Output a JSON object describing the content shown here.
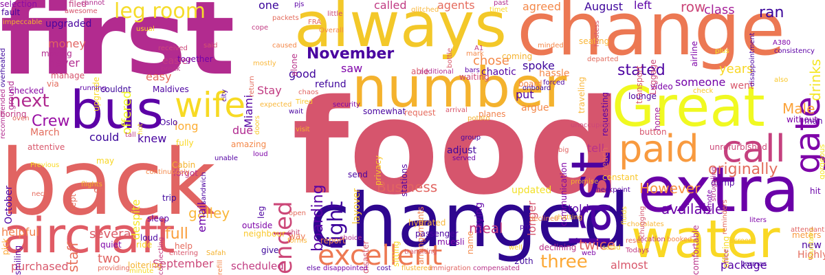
{
  "words": [
    {
      "text": "food",
      "color": "#d6556d"
    },
    {
      "text": "first",
      "color": "#b22b8f"
    },
    {
      "text": "back",
      "color": "#e16462"
    },
    {
      "text": "changed",
      "color": "#2e068f"
    },
    {
      "text": "change",
      "color": "#ec7853"
    },
    {
      "text": "always",
      "color": "#f3c829"
    },
    {
      "text": "number",
      "color": "#f4b22d"
    },
    {
      "text": "Great",
      "color": "#f0f921"
    },
    {
      "text": "extra",
      "color": "#6a00a8"
    },
    {
      "text": "water",
      "color": "#f9d824"
    },
    {
      "text": "aircraft",
      "color": "#e05b65"
    },
    {
      "text": "bus",
      "color": "#5c01a6"
    },
    {
      "text": "last",
      "color": "#4c02a1"
    },
    {
      "text": "call",
      "color": "#c5407e"
    },
    {
      "text": "paid",
      "color": "#f89a3f"
    },
    {
      "text": "wife",
      "color": "#f7da24"
    },
    {
      "text": "excellent",
      "color": "#ed7953"
    },
    {
      "text": "gate",
      "color": "#7e03a8"
    },
    {
      "text": "ended",
      "color": "#cc4778"
    },
    {
      "text": "right",
      "color": "#3e049c"
    },
    {
      "text": "three",
      "color": "#fca835"
    },
    {
      "text": "leg room",
      "color": "#f5dc2b"
    },
    {
      "text": "originally",
      "color": "#e36c5d"
    },
    {
      "text": "next",
      "color": "#b02a8f"
    },
    {
      "text": "full",
      "color": "#fa9e3b"
    },
    {
      "text": "November",
      "color": "#4903a0"
    },
    {
      "text": "staff",
      "color": "#e76f5a"
    },
    {
      "text": "Crew",
      "color": "#990fa4"
    },
    {
      "text": "boarding",
      "color": "#5601a4"
    },
    {
      "text": "stated",
      "color": "#4c02a1"
    },
    {
      "text": "available",
      "color": "#6a00a8"
    },
    {
      "text": "However",
      "color": "#f79342"
    },
    {
      "text": "Business",
      "color": "#e26561"
    },
    {
      "text": "ran",
      "color": "#3b049a"
    },
    {
      "text": "row",
      "color": "#cb4679"
    },
    {
      "text": "class",
      "color": "#a62098"
    },
    {
      "text": "drinks",
      "color": "#f5e626"
    },
    {
      "text": "Male",
      "color": "#fba238"
    },
    {
      "text": "package",
      "color": "#5402a3"
    },
    {
      "text": "twice",
      "color": "#e16462"
    },
    {
      "text": "galley",
      "color": "#f9b73a"
    },
    {
      "text": "several",
      "color": "#db5c68"
    },
    {
      "text": "purchased",
      "color": "#d8576b"
    },
    {
      "text": "helpful",
      "color": "#f1824c"
    },
    {
      "text": "two",
      "color": "#e16462"
    },
    {
      "text": "September",
      "color": "#cc4778"
    },
    {
      "text": "almost",
      "color": "#d8576b"
    },
    {
      "text": "scheduled",
      "color": "#c13b82"
    },
    {
      "text": "spoke",
      "color": "#3d049b"
    },
    {
      "text": "meal",
      "color": "#c33d80"
    },
    {
      "text": "money",
      "color": "#e16462"
    },
    {
      "text": "never",
      "color": "#b22b8f"
    },
    {
      "text": "offered",
      "color": "#f0f921"
    },
    {
      "text": "easy",
      "color": "#e66c5c"
    },
    {
      "text": "good",
      "color": "#3f049c"
    },
    {
      "text": "saw",
      "color": "#7e03a8"
    },
    {
      "text": "chose",
      "color": "#f48849"
    },
    {
      "text": "August",
      "color": "#3d049b"
    },
    {
      "text": "left",
      "color": "#5c01a6"
    },
    {
      "text": "one",
      "color": "#3a049a"
    },
    {
      "text": "called",
      "color": "#c03a83"
    },
    {
      "text": "agents",
      "color": "#e56b5d"
    },
    {
      "text": "agreed",
      "color": "#f48849"
    },
    {
      "text": "Stay",
      "color": "#c13b82"
    },
    {
      "text": "Miami",
      "color": "#5402a3"
    },
    {
      "text": "could",
      "color": "#3a049a"
    },
    {
      "text": "knew",
      "color": "#47039f"
    },
    {
      "text": "due",
      "color": "#b12a90"
    },
    {
      "text": "long",
      "color": "#fdad32"
    },
    {
      "text": "March",
      "color": "#e36c5d"
    },
    {
      "text": "despite",
      "color": "#f5e626"
    },
    {
      "text": "put",
      "color": "#4c02a1"
    },
    {
      "text": "years",
      "color": "#f8d725"
    },
    {
      "text": "someone",
      "color": "#7201a8"
    },
    {
      "text": "went",
      "color": "#d8576b"
    },
    {
      "text": "tell",
      "color": "#b83289"
    },
    {
      "text": "told",
      "color": "#5c01a6"
    },
    {
      "text": "longer",
      "color": "#d6556d"
    },
    {
      "text": "email",
      "color": "#6a00a8"
    },
    {
      "text": "October",
      "color": "#4c02a1"
    },
    {
      "text": "upgraded",
      "color": "#4903a0"
    },
    {
      "text": "refund",
      "color": "#3e049c"
    },
    {
      "text": "layover",
      "color": "#f9c72a"
    },
    {
      "text": "chaotic",
      "color": "#5402a3"
    },
    {
      "text": "hassle",
      "color": "#f48849"
    },
    {
      "text": "easier",
      "color": "#c13b82"
    },
    {
      "text": "argue",
      "color": "#f48849"
    },
    {
      "text": "adjust",
      "color": "#3f049c"
    },
    {
      "text": "saying",
      "color": "#5c01a6"
    },
    {
      "text": "updated",
      "color": "#f2e028"
    },
    {
      "text": "Highly",
      "color": "#e36c5d"
    },
    {
      "text": "new",
      "color": "#4c02a1"
    },
    {
      "text": "meters",
      "color": "#f89a3f"
    },
    {
      "text": "liters",
      "color": "#7e03a8"
    },
    {
      "text": "fault",
      "color": "#47039f"
    },
    {
      "text": "selection",
      "color": "#8b0aa5"
    },
    {
      "text": "filed",
      "color": "#c33d80"
    },
    {
      "text": "together",
      "color": "#7201a8"
    },
    {
      "text": "Maldives",
      "color": "#4c02a1"
    },
    {
      "text": "couldnt",
      "color": "#3b049a"
    },
    {
      "text": "alone",
      "color": "#b83289"
    },
    {
      "text": "able",
      "color": "#d8576b"
    },
    {
      "text": "gorgeous",
      "color": "#f5e626"
    },
    {
      "text": "unrefurbished",
      "color": "#cc4778"
    },
    {
      "text": "communication",
      "color": "#7e03a8"
    },
    {
      "text": "traveling",
      "color": "#f9b73a"
    },
    {
      "text": "transport",
      "color": "#d8576b"
    },
    {
      "text": "airline",
      "color": "#7e03a8"
    },
    {
      "text": "Oslo",
      "color": "#4903a0"
    },
    {
      "text": "upgrade",
      "color": "#f9d824"
    },
    {
      "text": "ground",
      "color": "#b02a8f"
    },
    {
      "text": "pick",
      "color": "#fca835"
    },
    {
      "text": "trip",
      "color": "#3e049c"
    },
    {
      "text": "kept",
      "color": "#e36c5d"
    },
    {
      "text": "may",
      "color": "#f8d725"
    },
    {
      "text": "give",
      "color": "#3b049a"
    },
    {
      "text": "way",
      "color": "#ed7953"
    },
    {
      "text": "report",
      "color": "#f48849"
    },
    {
      "text": "privacy",
      "color": "#f9c72a"
    },
    {
      "text": "send",
      "color": "#4903a0"
    },
    {
      "text": "hit",
      "color": "#6a00a8"
    },
    {
      "text": "man",
      "color": "#5c01a6"
    },
    {
      "text": "without",
      "color": "#7e03a8"
    },
    {
      "text": "arrangements",
      "color": "#f1824c"
    },
    {
      "text": "waiting",
      "color": "#cc4778"
    },
    {
      "text": "coming",
      "color": "#f4b22d"
    },
    {
      "text": "board",
      "color": "#f48849"
    },
    {
      "text": "seating",
      "color": "#f9b73a"
    },
    {
      "text": "somewhat",
      "color": "#47039f"
    },
    {
      "text": "request",
      "color": "#e56b5d"
    },
    {
      "text": "planes",
      "color": "#f1824c"
    },
    {
      "text": "lounge",
      "color": "#4c02a1"
    },
    {
      "text": "video",
      "color": "#7e03a8"
    },
    {
      "text": "home",
      "color": "#a62098"
    },
    {
      "text": "reach",
      "color": "#e36c5d"
    },
    {
      "text": "requesting",
      "color": "#5c01a6"
    },
    {
      "text": "Luggage",
      "color": "#cc4778"
    },
    {
      "text": "constant",
      "color": "#f9c72a"
    },
    {
      "text": "button",
      "color": "#d6556d"
    },
    {
      "text": "dump",
      "color": "#5402a3"
    },
    {
      "text": "comfortable",
      "color": "#b83289"
    },
    {
      "text": "offering",
      "color": "#f7da24"
    },
    {
      "text": "checked",
      "color": "#8b0aa5"
    },
    {
      "text": "manage",
      "color": "#d6556d"
    },
    {
      "text": "moving",
      "color": "#b22b8f"
    },
    {
      "text": "via",
      "color": "#e36c5d"
    },
    {
      "text": "boring",
      "color": "#c13b82"
    },
    {
      "text": "attentive",
      "color": "#d8576b"
    },
    {
      "text": "fully",
      "color": "#f9d824"
    },
    {
      "text": "amazing",
      "color": "#f48849"
    },
    {
      "text": "Cabin",
      "color": "#f4b22d"
    },
    {
      "text": "6h",
      "color": "#e56b5d"
    },
    {
      "text": "forgot",
      "color": "#b83289"
    },
    {
      "text": "sleep",
      "color": "#5c01a6"
    },
    {
      "text": "quiet",
      "color": "#7e03a8"
    },
    {
      "text": "ride",
      "color": "#f8d725"
    },
    {
      "text": "loud",
      "color": "#4903a0"
    },
    {
      "text": "help",
      "color": "#e56b5d"
    },
    {
      "text": "loitering",
      "color": "#f4b22d"
    },
    {
      "text": "smiling",
      "color": "#5402a3"
    },
    {
      "text": "leg",
      "color": "#4c02a1"
    },
    {
      "text": "outside",
      "color": "#7e03a8"
    },
    {
      "text": "neighbour",
      "color": "#f9c72a"
    },
    {
      "text": "hydrated",
      "color": "#f9b73a"
    },
    {
      "text": "disaster",
      "color": "#d8576b"
    },
    {
      "text": "name",
      "color": "#f48849"
    },
    {
      "text": "20th",
      "color": "#3e049c"
    },
    {
      "text": "declining",
      "color": "#b83289"
    },
    {
      "text": "stations",
      "color": "#5402a3"
    },
    {
      "text": "passenger",
      "color": "#4c02a1"
    },
    {
      "text": "sitting",
      "color": "#f8d725"
    },
    {
      "text": "muesli",
      "color": "#7e03a8"
    },
    {
      "text": "cannot",
      "color": "#b22b8f"
    },
    {
      "text": "awesome",
      "color": "#d6556d"
    },
    {
      "text": "pjs",
      "color": "#5c01a6"
    },
    {
      "text": "little",
      "color": "#cc4778"
    },
    {
      "text": "packets",
      "color": "#e36c5d"
    },
    {
      "text": "glitched",
      "color": "#f9b73a"
    },
    {
      "text": "cope",
      "color": "#c13b82"
    },
    {
      "text": "Overall",
      "color": "#f48849"
    },
    {
      "text": "usual",
      "color": "#f7da24"
    },
    {
      "text": "impeccable",
      "color": "#f4b22d"
    },
    {
      "text": "overheated",
      "color": "#3d049b"
    },
    {
      "text": "recommended",
      "color": "#b22b8f"
    },
    {
      "text": "city",
      "color": "#4c02a1"
    },
    {
      "text": "return",
      "color": "#e36c5d"
    },
    {
      "text": "received",
      "color": "#cc4778"
    },
    {
      "text": "break",
      "color": "#b83289"
    },
    {
      "text": "running",
      "color": "#5c01a6"
    },
    {
      "text": "chaos",
      "color": "#e16462"
    },
    {
      "text": "Tired",
      "color": "#f9c72a"
    },
    {
      "text": "wait",
      "color": "#4903a0"
    },
    {
      "text": "security",
      "color": "#7e03a8"
    },
    {
      "text": "arrival",
      "color": "#d8576b"
    },
    {
      "text": "potato",
      "color": "#f4b22d"
    },
    {
      "text": "group",
      "color": "#47039f"
    },
    {
      "text": "served",
      "color": "#6a00a8"
    },
    {
      "text": "additional",
      "color": "#b22b8f"
    },
    {
      "text": "bars",
      "color": "#5c01a6"
    },
    {
      "text": "forced",
      "color": "#4c02a1"
    },
    {
      "text": "minded",
      "color": "#f48849"
    },
    {
      "text": "departed",
      "color": "#e36c5d"
    },
    {
      "text": "unoccupied",
      "color": "#cc4778"
    },
    {
      "text": "hostess",
      "color": "#d8576b"
    },
    {
      "text": "check",
      "color": "#f9c72a"
    },
    {
      "text": "onboard",
      "color": "#3d049b"
    },
    {
      "text": "promise",
      "color": "#f4b22d"
    },
    {
      "text": "checkpoint",
      "color": "#5402a3"
    },
    {
      "text": "fluids",
      "color": "#f9d824"
    },
    {
      "text": "reminders",
      "color": "#e56b5d"
    },
    {
      "text": "remote",
      "color": "#7e03a8"
    },
    {
      "text": "struggling",
      "color": "#b22b8f"
    },
    {
      "text": "fountains",
      "color": "#f5e626"
    },
    {
      "text": "attendant",
      "color": "#e16462"
    },
    {
      "text": "location",
      "color": "#c13b82"
    },
    {
      "text": "booked",
      "color": "#f48849"
    },
    {
      "text": "chocolates",
      "color": "#f9b73a"
    },
    {
      "text": "chugging",
      "color": "#d6556d"
    },
    {
      "text": "chatting",
      "color": "#f4b22d"
    },
    {
      "text": "pm",
      "color": "#4c02a1"
    },
    {
      "text": "salad",
      "color": "#f8d725"
    },
    {
      "text": "web",
      "color": "#7e03a8"
    },
    {
      "text": "reset",
      "color": "#e36c5d"
    },
    {
      "text": "Todays",
      "color": "#c13b82"
    },
    {
      "text": "nice",
      "color": "#b83289"
    },
    {
      "text": "screen",
      "color": "#f9c72a"
    },
    {
      "text": "tarmac",
      "color": "#47039f"
    },
    {
      "text": "Safah",
      "color": "#f4b22d"
    },
    {
      "text": "providing",
      "color": "#e56b5d"
    },
    {
      "text": "entering",
      "color": "#d8576b"
    },
    {
      "text": "minute",
      "color": "#f7da24"
    },
    {
      "text": "connecting",
      "color": "#c13b82"
    },
    {
      "text": "refill",
      "color": "#f48849"
    },
    {
      "text": "forms",
      "color": "#f9b73a"
    },
    {
      "text": "open",
      "color": "#e36c5d"
    },
    {
      "text": "chit",
      "color": "#cc4778"
    },
    {
      "text": "choice",
      "color": "#b22b8f"
    },
    {
      "text": "else",
      "color": "#5c01a6"
    },
    {
      "text": "disappointed",
      "color": "#7e03a8"
    },
    {
      "text": "cost",
      "color": "#4c02a1"
    },
    {
      "text": "flustered",
      "color": "#f4b22d"
    },
    {
      "text": "immigration",
      "color": "#e16462"
    },
    {
      "text": "compensated",
      "color": "#b83289"
    },
    {
      "text": "transiting",
      "color": "#d8576b"
    },
    {
      "text": "declined",
      "color": "#f48849"
    },
    {
      "text": "well",
      "color": "#f9c72a"
    },
    {
      "text": "neck",
      "color": "#e56b5d"
    },
    {
      "text": "flights",
      "color": "#f4b22d"
    },
    {
      "text": "Previous",
      "color": "#f9d824"
    },
    {
      "text": "unable",
      "color": "#5402a3"
    },
    {
      "text": "sandwich",
      "color": "#4c02a1"
    },
    {
      "text": "continuously",
      "color": "#f48849"
    },
    {
      "text": "loud",
      "color": "#7e03a8"
    },
    {
      "text": "tall",
      "color": "#c13b82"
    },
    {
      "text": "hot",
      "color": "#f7da24"
    },
    {
      "text": "oven",
      "color": "#e36c5d"
    },
    {
      "text": "expected",
      "color": "#f9b73a"
    },
    {
      "text": "visit",
      "color": "#f4b22d"
    },
    {
      "text": "doors",
      "color": "#f9c72a"
    },
    {
      "text": "FRA",
      "color": "#e56b5d"
    },
    {
      "text": "A1",
      "color": "#c13b82"
    },
    {
      "text": "mark",
      "color": "#f48849"
    },
    {
      "text": "bottle",
      "color": "#d8576b"
    },
    {
      "text": "timet",
      "color": "#f9d824"
    },
    {
      "text": "past",
      "color": "#b22b8f"
    },
    {
      "text": "consistency",
      "color": "#5c01a6"
    },
    {
      "text": "disappointment",
      "color": "#4c02a1"
    },
    {
      "text": "A380",
      "color": "#7e03a8"
    },
    {
      "text": "also",
      "color": "#f9c72a"
    },
    {
      "text": "big",
      "color": "#e16462"
    },
    {
      "text": "said",
      "color": "#d6556d"
    },
    {
      "text": "caused",
      "color": "#f48849"
    },
    {
      "text": "mostly",
      "color": "#f9b73a"
    },
    {
      "text": "plus",
      "color": "#f5e626"
    }
  ]
}
